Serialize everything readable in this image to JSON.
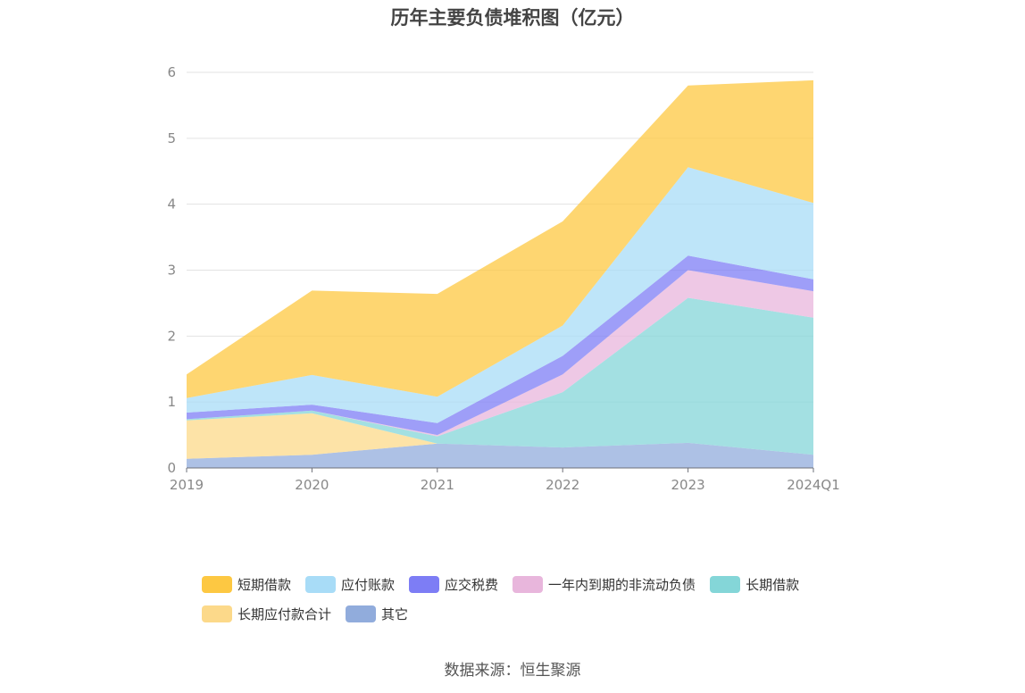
{
  "chart_data": {
    "type": "area",
    "stacked": true,
    "title": "历年主要负债堆积图（亿元）",
    "categories": [
      "2019",
      "2020",
      "2021",
      "2022",
      "2023",
      "2024Q1"
    ],
    "ylim": [
      0,
      6
    ],
    "yticks": [
      "0",
      "1",
      "2",
      "3",
      "4",
      "5",
      "6"
    ],
    "grid": true,
    "legend_position": "bottom",
    "series": [
      {
        "name": "其它",
        "color": "#91acdc",
        "values": [
          0.14,
          0.2,
          0.37,
          0.31,
          0.38,
          0.2
        ]
      },
      {
        "name": "长期应付款合计",
        "color": "#fcd98a",
        "values": [
          0.58,
          0.63,
          0.0,
          0.0,
          0.0,
          0.0
        ]
      },
      {
        "name": "长期借款",
        "color": "#84d6d8",
        "values": [
          0.02,
          0.04,
          0.11,
          0.84,
          2.2,
          2.08
        ]
      },
      {
        "name": "一年内到期的非流动负债",
        "color": "#e8b6dc",
        "values": [
          0.0,
          0.0,
          0.02,
          0.27,
          0.42,
          0.4
        ]
      },
      {
        "name": "应交税费",
        "color": "#7d7df5",
        "values": [
          0.1,
          0.09,
          0.18,
          0.28,
          0.22,
          0.18
        ]
      },
      {
        "name": "应付账款",
        "color": "#a8dcf7",
        "values": [
          0.22,
          0.45,
          0.4,
          0.46,
          1.34,
          1.16
        ]
      },
      {
        "name": "短期借款",
        "color": "#fdc842",
        "values": [
          0.36,
          1.28,
          1.56,
          1.58,
          1.24,
          1.86
        ]
      }
    ]
  },
  "legend_order": [
    "短期借款",
    "应付账款",
    "应交税费",
    "一年内到期的非流动负债",
    "长期借款",
    "长期应付款合计",
    "其它"
  ],
  "source": "数据来源：恒生聚源"
}
